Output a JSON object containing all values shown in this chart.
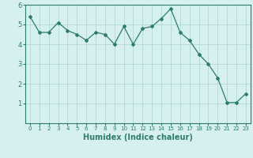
{
  "x": [
    0,
    1,
    2,
    3,
    4,
    5,
    6,
    7,
    8,
    9,
    10,
    11,
    12,
    13,
    14,
    15,
    16,
    17,
    18,
    19,
    20,
    21,
    22,
    23
  ],
  "y": [
    5.4,
    4.6,
    4.6,
    5.1,
    4.7,
    4.5,
    4.2,
    4.6,
    4.5,
    4.0,
    4.9,
    4.0,
    4.8,
    4.9,
    5.3,
    5.8,
    4.6,
    4.2,
    3.5,
    3.0,
    2.3,
    1.05,
    1.05,
    1.5
  ],
  "line_color": "#2e7d6b",
  "marker": "D",
  "marker_size": 2,
  "bg_color": "#d6f0f0",
  "grid_color": "#b0d8d8",
  "xlabel": "Humidex (Indice chaleur)",
  "xlabel_fontsize": 7,
  "xlabel_color": "#2e7d6b",
  "tick_color": "#2e7d6b",
  "ylim": [
    0,
    6
  ],
  "xlim": [
    -0.5,
    23.5
  ],
  "yticks": [
    1,
    2,
    3,
    4,
    5,
    6
  ],
  "xticks": [
    0,
    1,
    2,
    3,
    4,
    5,
    6,
    7,
    8,
    9,
    10,
    11,
    12,
    13,
    14,
    15,
    16,
    17,
    18,
    19,
    20,
    21,
    22,
    23
  ],
  "tick_fontsize_x": 5,
  "tick_fontsize_y": 6,
  "linewidth": 0.9
}
